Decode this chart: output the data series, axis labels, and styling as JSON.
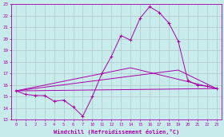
{
  "bg_color": "#c8ecec",
  "grid_color": "#b0c8c8",
  "line_color": "#aa00aa",
  "ylabel_values": [
    13,
    14,
    15,
    16,
    17,
    18,
    19,
    20,
    21,
    22,
    23
  ],
  "xlabel_ticks": [
    0,
    1,
    2,
    3,
    4,
    5,
    6,
    7,
    10,
    11,
    12,
    13,
    14,
    15,
    16,
    17,
    18,
    19,
    20,
    21,
    22,
    23
  ],
  "xlabel": "Windchill (Refroidissement éolien,°C)",
  "ylim": [
    13,
    23
  ],
  "line1_idx": [
    0,
    1,
    2,
    3,
    4,
    5,
    6,
    7,
    8,
    9,
    10,
    11,
    12,
    13,
    14,
    15,
    16,
    17,
    18,
    19,
    20,
    21
  ],
  "line1_y": [
    15.5,
    15.2,
    15.1,
    15.1,
    14.6,
    14.7,
    14.1,
    13.3,
    15.0,
    17.0,
    18.5,
    20.3,
    19.9,
    21.8,
    22.8,
    22.3,
    21.4,
    19.8,
    16.4,
    16.0,
    15.9,
    15.7
  ],
  "line2_idx": [
    0,
    21
  ],
  "line2_y": [
    15.5,
    15.7
  ],
  "line3_idx": [
    0,
    12,
    21
  ],
  "line3_y": [
    15.5,
    17.5,
    15.7
  ],
  "line4_idx": [
    0,
    17,
    21
  ],
  "line4_y": [
    15.5,
    17.3,
    15.7
  ]
}
